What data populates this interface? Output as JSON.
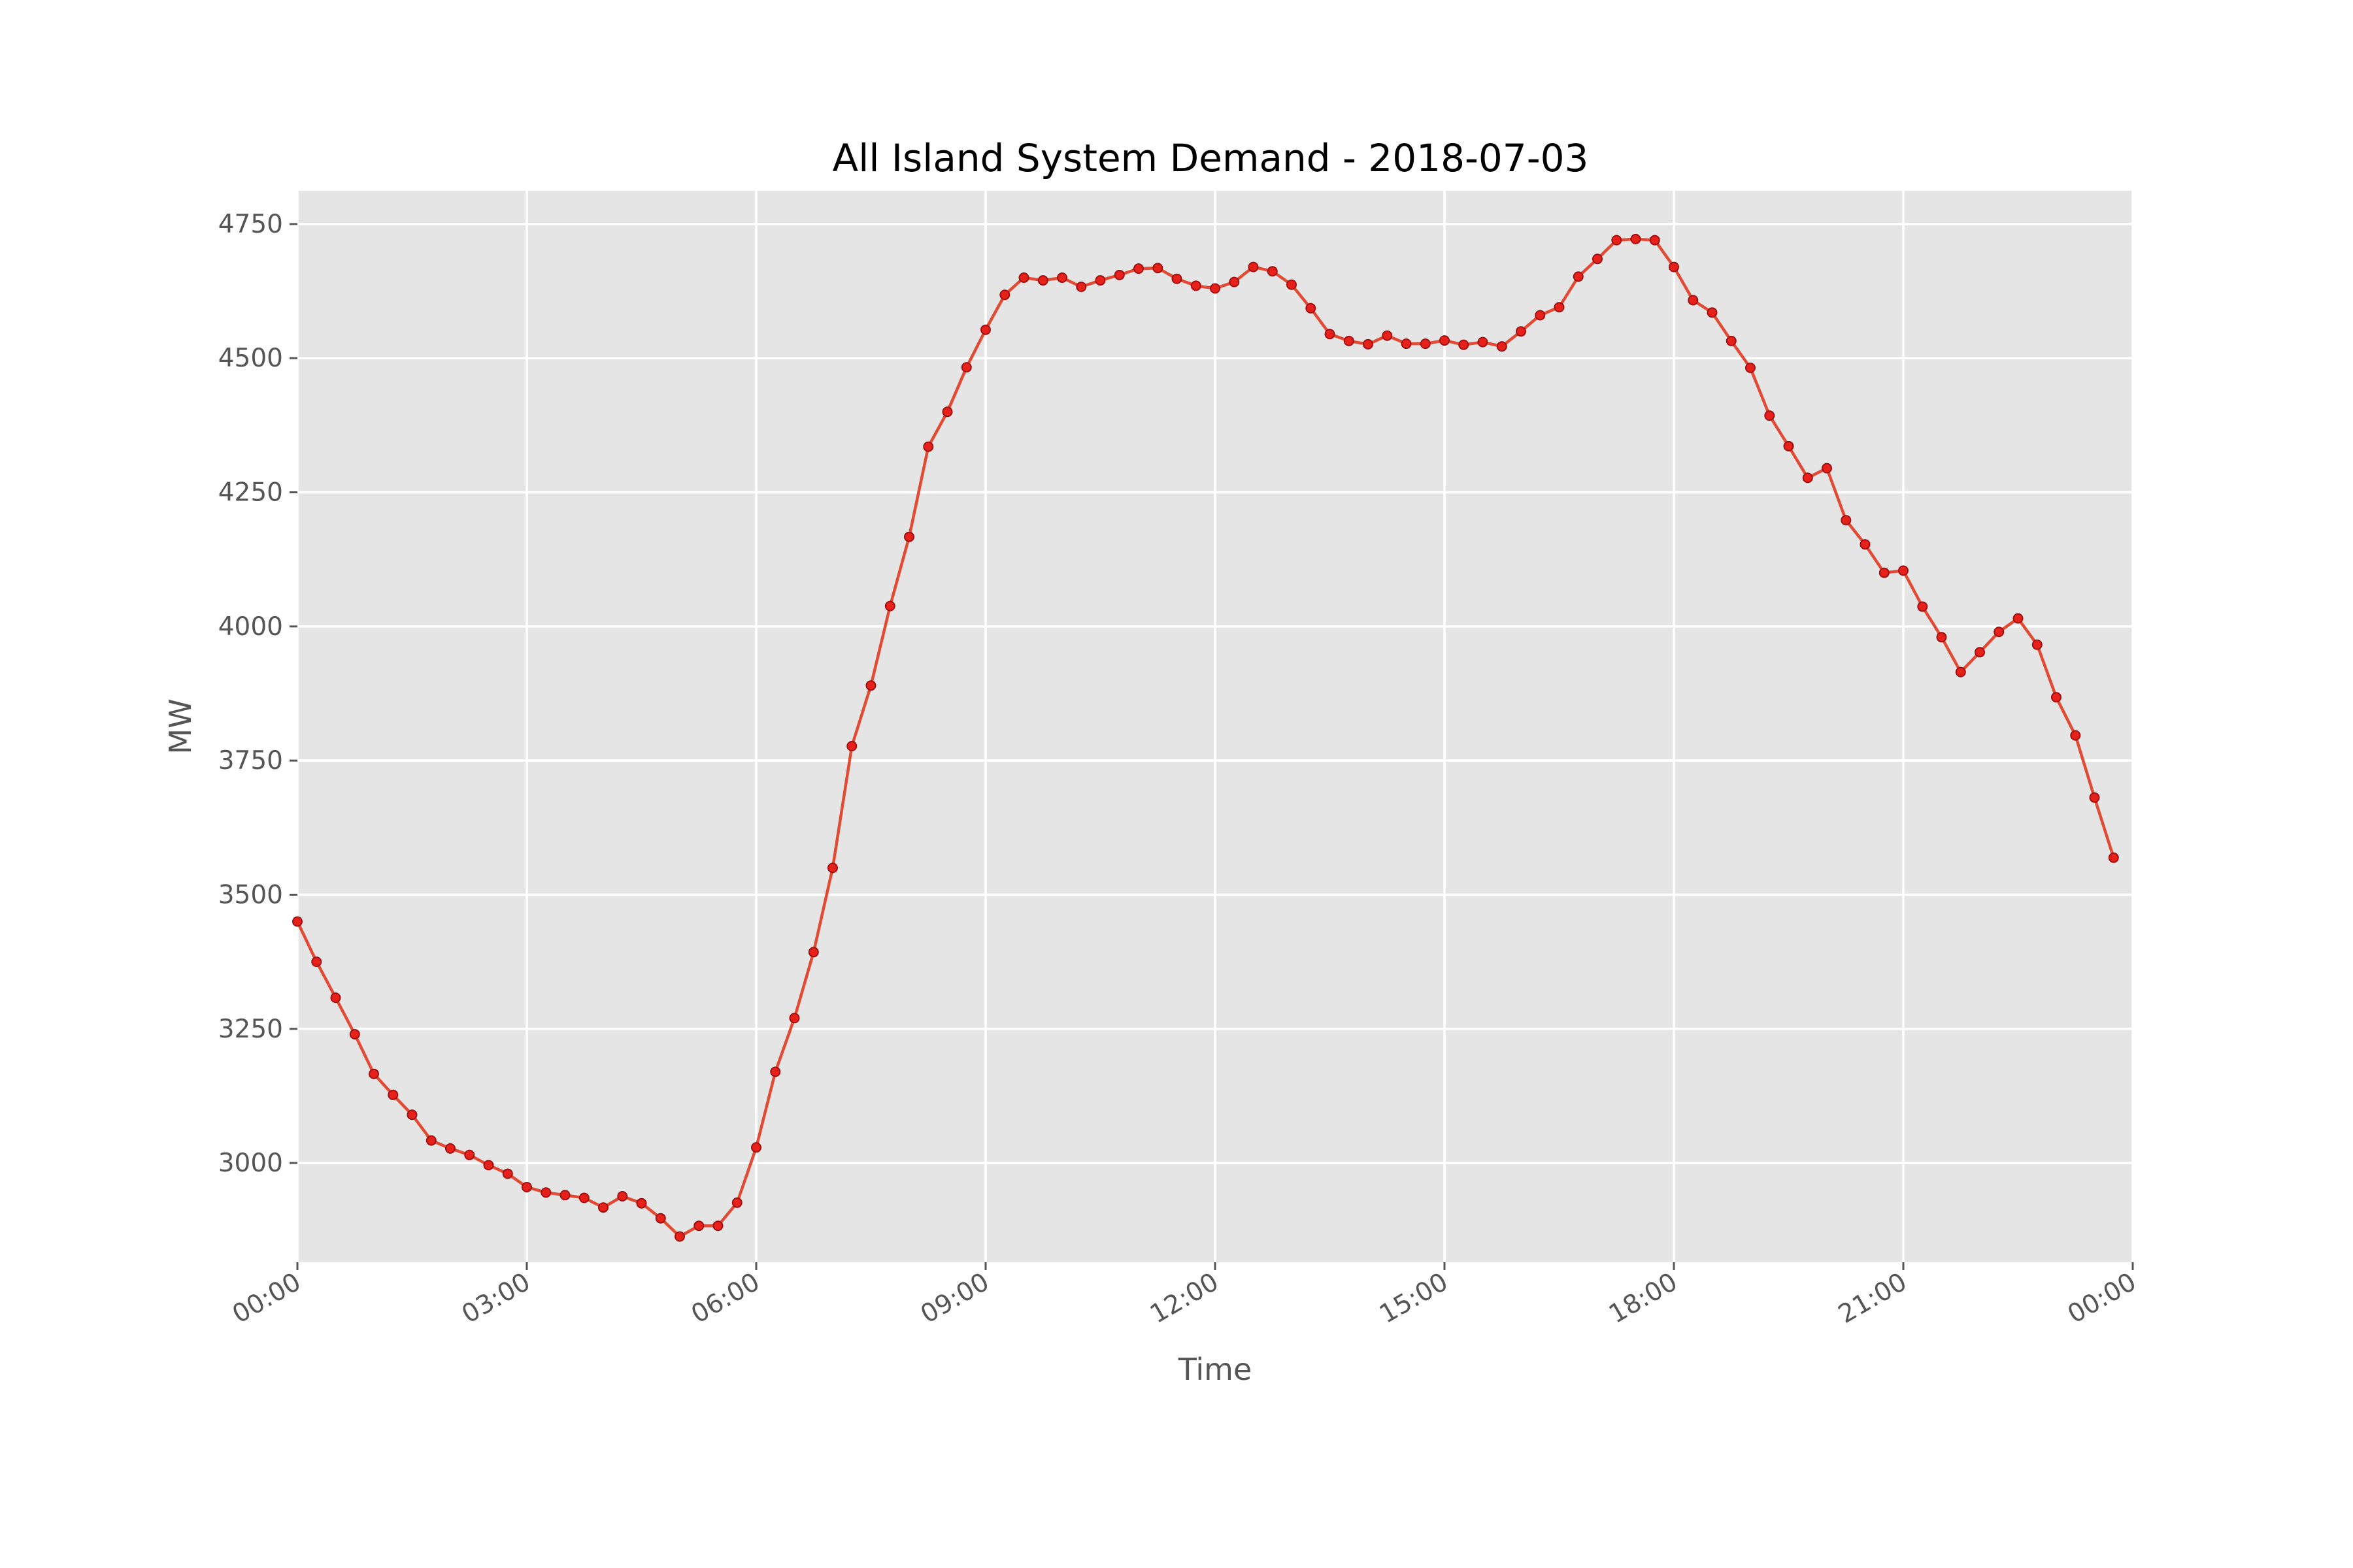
{
  "chart_data": {
    "type": "line",
    "title": "All Island System Demand - 2018-07-03",
    "xlabel": "Time",
    "ylabel": "MW",
    "x_tick_labels": [
      "00:00",
      "03:00",
      "06:00",
      "09:00",
      "12:00",
      "15:00",
      "18:00",
      "21:00",
      "00:00"
    ],
    "x_ticks_hours": [
      0,
      3,
      6,
      9,
      12,
      15,
      18,
      21,
      24
    ],
    "y_ticks": [
      3000,
      3250,
      3500,
      3750,
      4000,
      4250,
      4500,
      4750
    ],
    "xlim_hours": [
      0,
      24
    ],
    "ylim": [
      2815,
      4812
    ],
    "grid": true,
    "background": "#e5e5e5",
    "line_color": "#e24a33",
    "marker_color": "#e8201a",
    "series": [
      {
        "interval": "15 min, starting 00:00",
        "values": [
          3450,
          3375,
          3308,
          3240,
          3166,
          3127,
          3090,
          3042,
          3027,
          3015,
          2996,
          2980,
          2955,
          2945,
          2940,
          2935,
          2917,
          2938,
          2925,
          2897,
          2863,
          2883,
          2883,
          2926,
          3029,
          3170,
          3270,
          3393,
          3550,
          3777,
          3890,
          4038,
          4167,
          4335,
          4400,
          4483,
          4553,
          4618,
          4650,
          4645,
          4650,
          4633,
          4645,
          4655,
          4667,
          4668,
          4648,
          4635,
          4630,
          4642,
          4670,
          4662,
          4637,
          4593,
          4545,
          4532,
          4526,
          4542,
          4527,
          4527,
          4533,
          4525,
          4530,
          4522,
          4550,
          4580,
          4595,
          4652,
          4685,
          4720,
          4722,
          4720,
          4670,
          4608,
          4585,
          4532,
          4482,
          4393,
          4336,
          4277,
          4295,
          4198,
          4153,
          4100,
          4104,
          4037,
          3980,
          3915,
          3952,
          3990,
          4015,
          3966,
          3868,
          3797,
          3681,
          3569
        ]
      }
    ]
  }
}
